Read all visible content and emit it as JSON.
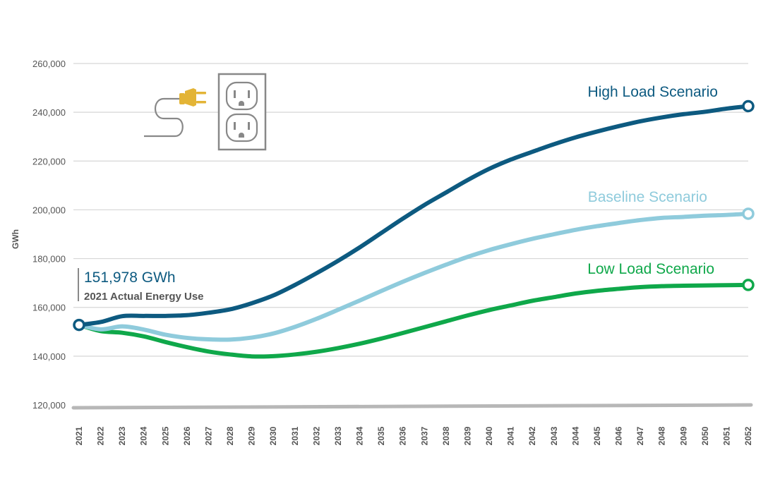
{
  "chart_data": {
    "type": "line",
    "ylabel": "GWh",
    "xlabel": "",
    "ylim": [
      120000,
      260000
    ],
    "yticks": [
      "120,000",
      "140,000",
      "160,000",
      "180,000",
      "200,000",
      "220,000",
      "240,000",
      "260,000"
    ],
    "ytick_values": [
      120000,
      140000,
      160000,
      180000,
      200000,
      220000,
      240000,
      260000
    ],
    "grid": true,
    "categories": [
      "2021",
      "2022",
      "2023",
      "2024",
      "2025",
      "2026",
      "2027",
      "2028",
      "2029",
      "2030",
      "2031",
      "2032",
      "2033",
      "2034",
      "2035",
      "2036",
      "2037",
      "2038",
      "2039",
      "2040",
      "2041",
      "2042",
      "2043",
      "2044",
      "2045",
      "2046",
      "2047",
      "2048",
      "2049",
      "2050",
      "2051",
      "2052"
    ],
    "series": [
      {
        "name": "High Load Scenario",
        "color": "#0d5a80",
        "values": [
          152800,
          154000,
          156400,
          156500,
          156500,
          156800,
          157800,
          159200,
          161700,
          164900,
          169200,
          174000,
          179100,
          184600,
          190500,
          196400,
          202000,
          207100,
          212200,
          216800,
          220600,
          223800,
          226900,
          229700,
          232100,
          234300,
          236300,
          237900,
          239200,
          240200,
          241500,
          242500
        ]
      },
      {
        "name": "Baseline Scenario",
        "color": "#8fcbdc",
        "values": [
          152800,
          151000,
          152200,
          150900,
          148800,
          147500,
          146900,
          146800,
          147600,
          149300,
          152000,
          155300,
          159000,
          162800,
          166700,
          170500,
          174100,
          177500,
          180700,
          183500,
          185900,
          188100,
          190000,
          191800,
          193300,
          194600,
          195800,
          196700,
          197100,
          197600,
          197900,
          198400
        ]
      },
      {
        "name": "Low Load Scenario",
        "color": "#0fa84a",
        "values": [
          152800,
          150300,
          149600,
          148100,
          145800,
          143700,
          141900,
          140700,
          139900,
          140000,
          140700,
          141800,
          143300,
          145100,
          147200,
          149500,
          151900,
          154300,
          156700,
          158900,
          160800,
          162700,
          164200,
          165700,
          166800,
          167600,
          168300,
          168700,
          168900,
          169000,
          169100,
          169200
        ]
      }
    ],
    "baseline_line_color": "#b7b7b7",
    "annotation": {
      "value": "151,978 GWh",
      "caption": "2021 Actual Energy Use"
    }
  },
  "icons": [
    "electric-plug-icon",
    "wall-outlet-icon"
  ]
}
